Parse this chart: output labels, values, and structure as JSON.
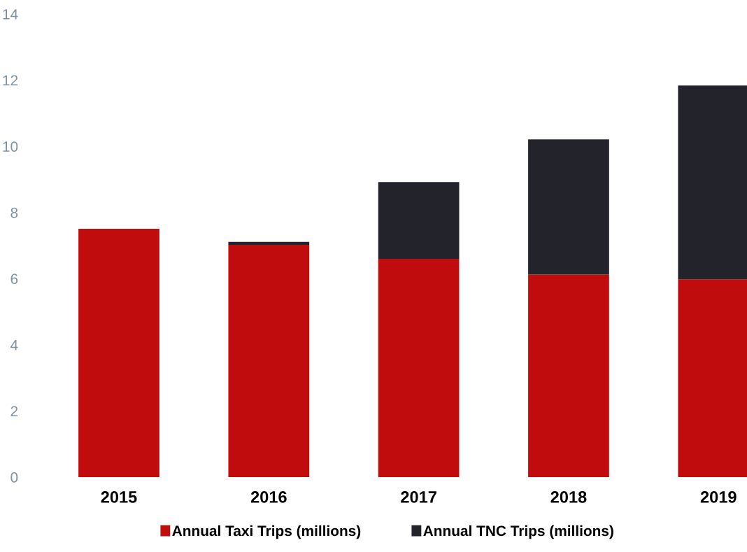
{
  "chart_data": {
    "type": "bar",
    "stacked": true,
    "categories": [
      "2015",
      "2016",
      "2017",
      "2018",
      "2019"
    ],
    "series": [
      {
        "name": "Annual Taxi Trips (millions)",
        "color": "#c00c0c",
        "values": [
          7.51,
          7.02,
          6.6,
          6.12,
          5.98
        ]
      },
      {
        "name": "Annual TNC Trips (millions)",
        "color": "#22232b",
        "values": [
          0,
          0.09,
          2.32,
          4.09,
          5.86
        ]
      }
    ],
    "ylim": [
      0,
      14
    ],
    "yticks": [
      0,
      2,
      4,
      6,
      8,
      10,
      12,
      14
    ],
    "grid": false,
    "legend": "bottom"
  }
}
